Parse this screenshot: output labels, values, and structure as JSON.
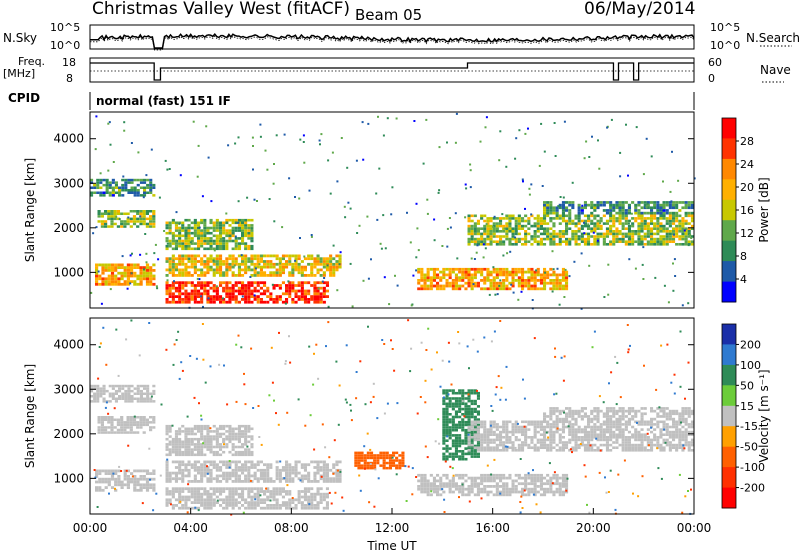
{
  "header": {
    "station": "Christmas Valley West (fitACF)",
    "beam": "Beam 05",
    "date": "06/May/2014"
  },
  "noise_panel": {
    "left_label": "N.Sky",
    "left_ticks": [
      "10^5",
      "10^0"
    ],
    "right_ticks": [
      "10^5",
      "10^0"
    ],
    "right_label": "N.Search"
  },
  "freq_panel": {
    "left_label_1": "Freq.",
    "left_label_2": "[MHz]",
    "left_ticks": [
      "18",
      "8"
    ],
    "right_ticks": [
      "60",
      "0"
    ],
    "right_label": "Nave"
  },
  "cpid": {
    "label": "CPID",
    "value": "normal (fast) 151 IF"
  },
  "chart_data": [
    {
      "type": "heatmap",
      "name": "power",
      "ylabel": "Slant Range [km]",
      "yticks": [
        "4000",
        "3000",
        "2000",
        "1000"
      ],
      "ytick_values": [
        4000,
        3000,
        2000,
        1000
      ],
      "ylim": [
        200,
        4600
      ],
      "xlim_hours": [
        0,
        24
      ],
      "colorbar_label": "Power [dB]",
      "colorbar_ticks": [
        "28",
        "24",
        "20",
        "16",
        "12",
        "8",
        "4"
      ],
      "colorbar_colors": [
        "#ff0000",
        "#ff3300",
        "#ff8800",
        "#ffb000",
        "#c8c800",
        "#5fa84a",
        "#2e8b57",
        "#1e5aa8",
        "#0000ff"
      ],
      "bands": [
        {
          "t0": 0.0,
          "t1": 2.6,
          "r0": 2700,
          "r1": 3100,
          "val": 10
        },
        {
          "t0": 0.3,
          "t1": 2.6,
          "r0": 2000,
          "r1": 2400,
          "val": 14
        },
        {
          "t0": 0.2,
          "t1": 2.6,
          "r0": 700,
          "r1": 1200,
          "val": 20
        },
        {
          "t0": 3.0,
          "t1": 9.5,
          "r0": 300,
          "r1": 800,
          "val": 26
        },
        {
          "t0": 3.0,
          "t1": 10.0,
          "r0": 900,
          "r1": 1400,
          "val": 18
        },
        {
          "t0": 3.0,
          "t1": 6.5,
          "r0": 1500,
          "r1": 2200,
          "val": 14
        },
        {
          "t0": 13.0,
          "t1": 19.0,
          "r0": 600,
          "r1": 1100,
          "val": 20
        },
        {
          "t0": 15.0,
          "t1": 24.0,
          "r0": 1600,
          "r1": 2300,
          "val": 14
        },
        {
          "t0": 18.0,
          "t1": 24.0,
          "r0": 2300,
          "r1": 2600,
          "val": 10
        }
      ]
    },
    {
      "type": "heatmap",
      "name": "velocity",
      "ylabel": "Slant Range [km]",
      "yticks": [
        "4000",
        "3000",
        "2000",
        "1000"
      ],
      "ytick_values": [
        4000,
        3000,
        2000,
        1000
      ],
      "ylim": [
        200,
        4600
      ],
      "xlim_hours": [
        0,
        24
      ],
      "xticks": [
        "00:00",
        "04:00",
        "08:00",
        "12:00",
        "16:00",
        "20:00",
        "00:00"
      ],
      "xtick_hours": [
        0,
        4,
        8,
        12,
        16,
        20,
        24
      ],
      "xlabel": "Time UT",
      "colorbar_label": "Velocity [m s⁻¹]",
      "colorbar_ticks": [
        "200",
        "100",
        "50",
        "15",
        "-15",
        "-50",
        "-100",
        "-200"
      ],
      "colorbar_colors": [
        "#1a2fa8",
        "#2f7ad0",
        "#2e8b57",
        "#6ccc3a",
        "#c0c0c0",
        "#ffa000",
        "#ff6000",
        "#ff3000",
        "#ff0000"
      ],
      "bands": [
        {
          "t0": 0.0,
          "t1": 2.6,
          "r0": 2700,
          "r1": 3100,
          "val": 0
        },
        {
          "t0": 0.3,
          "t1": 2.6,
          "r0": 2000,
          "r1": 2400,
          "val": 0
        },
        {
          "t0": 0.2,
          "t1": 2.6,
          "r0": 700,
          "r1": 1200,
          "val": 0
        },
        {
          "t0": 3.0,
          "t1": 9.5,
          "r0": 300,
          "r1": 800,
          "val": 0
        },
        {
          "t0": 3.0,
          "t1": 10.0,
          "r0": 900,
          "r1": 1400,
          "val": 0
        },
        {
          "t0": 3.0,
          "t1": 6.5,
          "r0": 1500,
          "r1": 2200,
          "val": 0
        },
        {
          "t0": 10.5,
          "t1": 12.5,
          "r0": 1200,
          "r1": 1600,
          "val": -60
        },
        {
          "t0": 14.0,
          "t1": 15.5,
          "r0": 1400,
          "r1": 3000,
          "val": 40
        },
        {
          "t0": 13.0,
          "t1": 19.0,
          "r0": 600,
          "r1": 1100,
          "val": 0
        },
        {
          "t0": 15.0,
          "t1": 24.0,
          "r0": 1600,
          "r1": 2300,
          "val": 0
        },
        {
          "t0": 18.0,
          "t1": 24.0,
          "r0": 2300,
          "r1": 2600,
          "val": 0
        }
      ]
    }
  ]
}
